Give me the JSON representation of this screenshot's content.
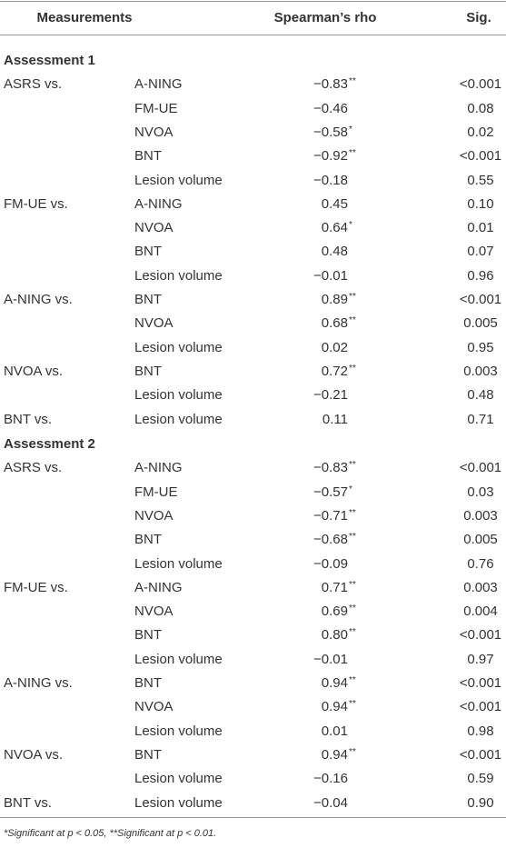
{
  "header": {
    "columns": [
      "Measurements",
      "Spearman’s rho",
      "Sig."
    ]
  },
  "sections": [
    {
      "title": "Assessment 1",
      "rows": [
        {
          "group": "ASRS vs.",
          "measure": "A-NING",
          "rho": "−0.83",
          "stars": "**",
          "sig": "<0.001"
        },
        {
          "measure": "FM-UE",
          "rho": "−0.46",
          "sig": "0.08"
        },
        {
          "measure": "NVOA",
          "rho": "−0.58",
          "stars": "*",
          "sig": "0.02"
        },
        {
          "measure": "BNT",
          "rho": "−0.92",
          "stars": "**",
          "sig": "<0.001"
        },
        {
          "measure": "Lesion volume",
          "rho": "−0.18",
          "sig": "0.55"
        },
        {
          "group": "FM-UE vs.",
          "measure": "A-NING",
          "rho": "0.45",
          "sig": "0.10"
        },
        {
          "measure": "NVOA",
          "rho": "0.64",
          "stars": "*",
          "sig": "0.01"
        },
        {
          "measure": "BNT",
          "rho": "0.48",
          "sig": "0.07"
        },
        {
          "measure": "Lesion volume",
          "rho": "−0.01",
          "sig": "0.96"
        },
        {
          "group": "A-NING vs.",
          "measure": "BNT",
          "rho": "0.89",
          "stars": "**",
          "sig": "<0.001"
        },
        {
          "measure": "NVOA",
          "rho": "0.68",
          "stars": "**",
          "sig": "0.005"
        },
        {
          "measure": "Lesion volume",
          "rho": "0.02",
          "sig": "0.95"
        },
        {
          "group": "NVOA vs.",
          "measure": "BNT",
          "rho": "0.72",
          "stars": "**",
          "sig": "0.003"
        },
        {
          "measure": "Lesion volume",
          "rho": "−0.21",
          "sig": "0.48"
        },
        {
          "group": "BNT vs.",
          "measure": "Lesion volume",
          "rho": "0.11",
          "sig": "0.71"
        }
      ]
    },
    {
      "title": "Assessment 2",
      "rows": [
        {
          "group": "ASRS vs.",
          "measure": "A-NING",
          "rho": "−0.83",
          "stars": "**",
          "sig": "<0.001"
        },
        {
          "measure": "FM-UE",
          "rho": "−0.57",
          "stars": "*",
          "sig": "0.03"
        },
        {
          "measure": "NVOA",
          "rho": "−0.71",
          "stars": "**",
          "sig": "0.003"
        },
        {
          "measure": "BNT",
          "rho": "−0.68",
          "stars": "**",
          "sig": "0.005"
        },
        {
          "measure": "Lesion volume",
          "rho": "−0.09",
          "sig": "0.76"
        },
        {
          "group": "FM-UE vs.",
          "measure": "A-NING",
          "rho": "0.71",
          "stars": "**",
          "sig": "0.003"
        },
        {
          "measure": "NVOA",
          "rho": "0.69",
          "stars": "**",
          "sig": "0.004"
        },
        {
          "measure": "BNT",
          "rho": "0.80",
          "stars": "**",
          "sig": "<0.001"
        },
        {
          "measure": "Lesion volume",
          "rho": "−0.01",
          "sig": "0.97"
        },
        {
          "group": "A-NING vs.",
          "measure": "BNT",
          "rho": "0.94",
          "stars": "**",
          "sig": "<0.001"
        },
        {
          "measure": "NVOA",
          "rho": "0.94",
          "stars": "**",
          "sig": "<0.001"
        },
        {
          "measure": "Lesion volume",
          "rho": "0.01",
          "sig": "0.98"
        },
        {
          "group": "NVOA vs.",
          "measure": "BNT",
          "rho": "0.94",
          "stars": "**",
          "sig": "<0.001"
        },
        {
          "measure": "Lesion volume",
          "rho": "−0.16",
          "sig": "0.59"
        },
        {
          "group": "BNT vs.",
          "measure": "Lesion volume",
          "rho": "−0.04",
          "sig": "0.90"
        }
      ]
    }
  ],
  "footnote": "*Significant at p < 0.05, **Significant at p < 0.01."
}
